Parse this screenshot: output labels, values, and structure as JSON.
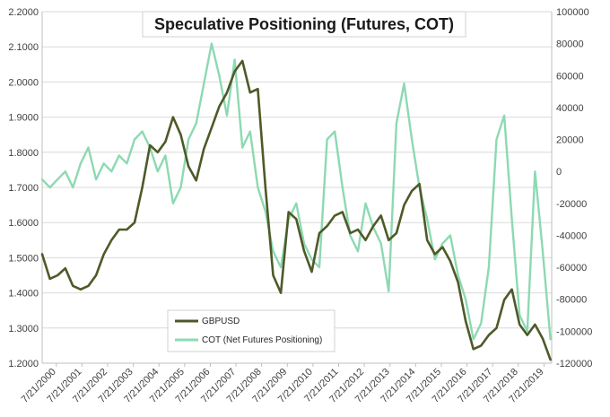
{
  "chart_data": {
    "type": "line",
    "title": "Speculative Positioning (Futures, COT)",
    "x_tick_labels": [
      "7/21/2000",
      "7/21/2001",
      "7/21/2002",
      "7/21/2003",
      "7/21/2004",
      "7/21/2005",
      "7/21/2006",
      "7/21/2007",
      "7/21/2008",
      "7/21/2009",
      "7/21/2010",
      "7/21/2011",
      "7/21/2012",
      "7/21/2013",
      "7/21/2014",
      "7/21/2015",
      "7/21/2016",
      "7/21/2017",
      "7/21/2018",
      "7/21/2019"
    ],
    "y_left": {
      "ylim": [
        1.2,
        2.2
      ],
      "tick_labels": [
        "1.2000",
        "1.3000",
        "1.4000",
        "1.5000",
        "1.6000",
        "1.7000",
        "1.8000",
        "1.9000",
        "2.0000",
        "2.1000",
        "2.2000"
      ]
    },
    "y_right": {
      "ylim": [
        -120000,
        100000
      ],
      "tick_labels": [
        "-120000",
        "-100000",
        "-80000",
        "-60000",
        "-40000",
        "-20000",
        "0",
        "20000",
        "40000",
        "60000",
        "80000",
        "100000"
      ]
    },
    "grid": true,
    "legend_placement": "bottom-center",
    "series": [
      {
        "name": "GBPUSD",
        "axis": "left",
        "color": "#4d5a28",
        "x": [
          2000.0,
          2000.3,
          2000.6,
          2000.9,
          2001.2,
          2001.5,
          2001.8,
          2002.1,
          2002.4,
          2002.7,
          2003.0,
          2003.3,
          2003.6,
          2003.9,
          2004.2,
          2004.5,
          2004.8,
          2005.1,
          2005.4,
          2005.7,
          2006.0,
          2006.3,
          2006.6,
          2006.9,
          2007.2,
          2007.5,
          2007.8,
          2008.1,
          2008.4,
          2008.7,
          2009.0,
          2009.3,
          2009.6,
          2009.9,
          2010.2,
          2010.5,
          2010.8,
          2011.1,
          2011.4,
          2011.7,
          2012.0,
          2012.3,
          2012.6,
          2012.9,
          2013.2,
          2013.5,
          2013.8,
          2014.1,
          2014.4,
          2014.7,
          2015.0,
          2015.3,
          2015.6,
          2015.9,
          2016.2,
          2016.5,
          2016.8,
          2017.1,
          2017.4,
          2017.7,
          2018.0,
          2018.3,
          2018.6,
          2018.9,
          2019.2,
          2019.5,
          2019.8
        ],
        "y": [
          1.51,
          1.44,
          1.45,
          1.47,
          1.42,
          1.41,
          1.42,
          1.45,
          1.51,
          1.55,
          1.58,
          1.58,
          1.6,
          1.7,
          1.82,
          1.8,
          1.83,
          1.9,
          1.85,
          1.76,
          1.72,
          1.81,
          1.87,
          1.93,
          1.97,
          2.03,
          2.06,
          1.97,
          1.98,
          1.7,
          1.45,
          1.4,
          1.63,
          1.61,
          1.52,
          1.46,
          1.57,
          1.59,
          1.62,
          1.63,
          1.57,
          1.58,
          1.55,
          1.59,
          1.62,
          1.55,
          1.57,
          1.65,
          1.69,
          1.71,
          1.55,
          1.51,
          1.53,
          1.49,
          1.43,
          1.32,
          1.24,
          1.25,
          1.28,
          1.3,
          1.38,
          1.41,
          1.31,
          1.28,
          1.31,
          1.27,
          1.21
        ]
      },
      {
        "name": "COT (Net Futures Positioning)",
        "axis": "right",
        "color": "#8dd9b2",
        "x": [
          2000.0,
          2000.3,
          2000.6,
          2000.9,
          2001.2,
          2001.5,
          2001.8,
          2002.1,
          2002.4,
          2002.7,
          2003.0,
          2003.3,
          2003.6,
          2003.9,
          2004.2,
          2004.5,
          2004.8,
          2005.1,
          2005.4,
          2005.7,
          2006.0,
          2006.3,
          2006.6,
          2006.9,
          2007.2,
          2007.5,
          2007.8,
          2008.1,
          2008.4,
          2008.7,
          2009.0,
          2009.3,
          2009.6,
          2009.9,
          2010.2,
          2010.5,
          2010.8,
          2011.1,
          2011.4,
          2011.7,
          2012.0,
          2012.3,
          2012.6,
          2012.9,
          2013.2,
          2013.5,
          2013.8,
          2014.1,
          2014.4,
          2014.7,
          2015.0,
          2015.3,
          2015.6,
          2015.9,
          2016.2,
          2016.5,
          2016.8,
          2017.1,
          2017.4,
          2017.7,
          2018.0,
          2018.3,
          2018.6,
          2018.9,
          2019.2,
          2019.5,
          2019.8
        ],
        "y": [
          -5000,
          -10000,
          -5000,
          0,
          -10000,
          5000,
          15000,
          -5000,
          5000,
          0,
          10000,
          5000,
          20000,
          25000,
          15000,
          0,
          10000,
          -20000,
          -10000,
          20000,
          30000,
          55000,
          80000,
          60000,
          35000,
          70000,
          15000,
          25000,
          -10000,
          -25000,
          -50000,
          -60000,
          -30000,
          -20000,
          -45000,
          -55000,
          -60000,
          20000,
          25000,
          -10000,
          -40000,
          -50000,
          -20000,
          -35000,
          -45000,
          -75000,
          30000,
          55000,
          20000,
          -10000,
          -30000,
          -55000,
          -45000,
          -40000,
          -65000,
          -80000,
          -105000,
          -95000,
          -60000,
          20000,
          35000,
          -30000,
          -90000,
          -100000,
          0,
          -50000,
          -105000
        ]
      }
    ]
  }
}
